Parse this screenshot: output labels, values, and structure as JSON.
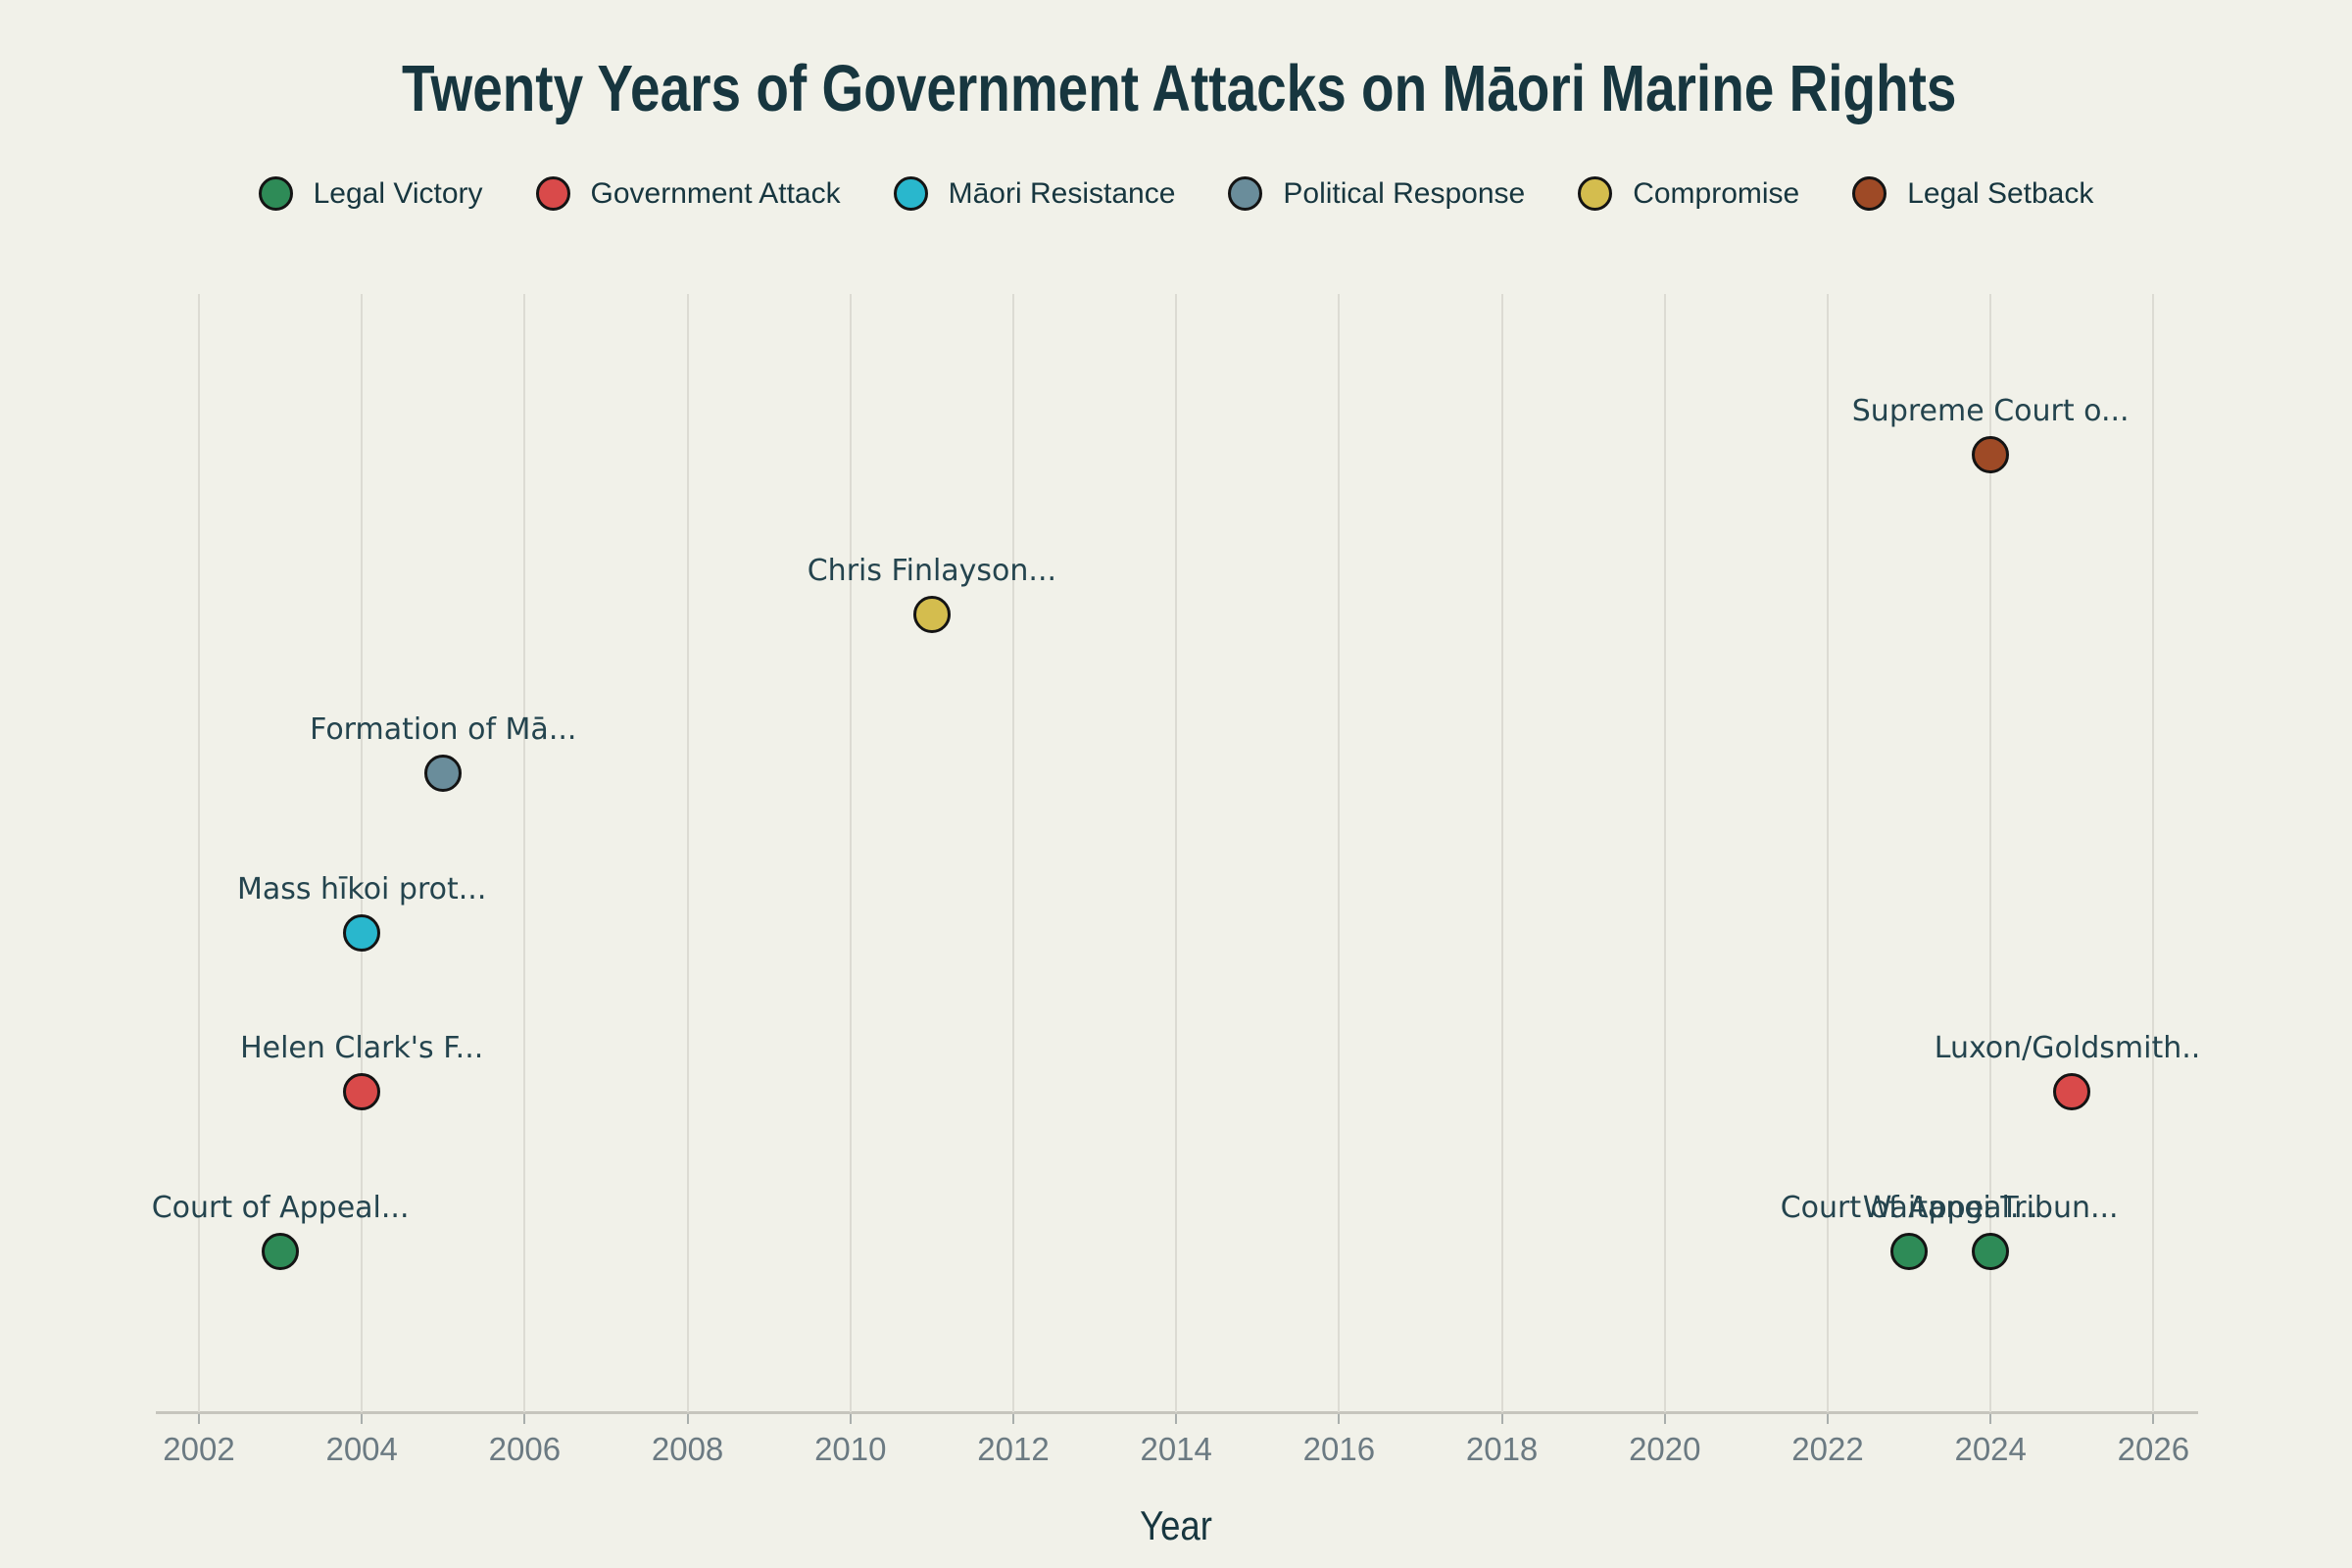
{
  "title": "Twenty Years of Government Attacks on Māori Marine Rights",
  "legend": {
    "items": [
      {
        "label": "Legal Victory",
        "color": "#2e8b57"
      },
      {
        "label": "Government Attack",
        "color": "#d94a4a"
      },
      {
        "label": "Māori Resistance",
        "color": "#29b7cd"
      },
      {
        "label": "Political Response",
        "color": "#6a8d9b"
      },
      {
        "label": "Compromise",
        "color": "#d4bd4e"
      },
      {
        "label": "Legal Setback",
        "color": "#9e4a26"
      }
    ]
  },
  "chart_data": {
    "type": "scatter",
    "title": "Twenty Years of Government Attacks on Māori Marine Rights",
    "xlabel": "Year",
    "x_ticks": [
      2002,
      2004,
      2006,
      2008,
      2010,
      2012,
      2014,
      2016,
      2018,
      2020,
      2022,
      2024,
      2026
    ],
    "xlim": [
      2001.5,
      2026.5
    ],
    "grid": "vertical-only",
    "legend_position": "top",
    "category_rows_top_to_bottom": [
      "Legal Setback",
      "Compromise",
      "Political Response",
      "Māori Resistance",
      "Government Attack",
      "Legal Victory"
    ],
    "series": [
      {
        "name": "Legal Victory",
        "color": "#2e8b57",
        "points": [
          {
            "year": 2003,
            "label": "Court of Appeal..."
          },
          {
            "year": 2023,
            "label": "Court of Appeal..."
          },
          {
            "year": 2024,
            "label": "Waitangi Tribun..."
          }
        ]
      },
      {
        "name": "Government Attack",
        "color": "#d94a4a",
        "points": [
          {
            "year": 2004,
            "label": "Helen Clark's F..."
          },
          {
            "year": 2025,
            "label": "Luxon/Goldsmith..."
          }
        ]
      },
      {
        "name": "Māori Resistance",
        "color": "#29b7cd",
        "points": [
          {
            "year": 2004,
            "label": "Mass hīkoi prot..."
          }
        ]
      },
      {
        "name": "Political Response",
        "color": "#6a8d9b",
        "points": [
          {
            "year": 2005,
            "label": "Formation of Mā..."
          }
        ]
      },
      {
        "name": "Compromise",
        "color": "#d4bd4e",
        "points": [
          {
            "year": 2011,
            "label": "Chris Finlayson..."
          }
        ]
      },
      {
        "name": "Legal Setback",
        "color": "#9e4a26",
        "points": [
          {
            "year": 2024,
            "label": "Supreme Court o..."
          }
        ]
      }
    ]
  },
  "colors": {
    "background": "#f1f1e9",
    "title_text": "#17363f",
    "event_label_text": "#24444e",
    "tick_label_text": "#6b7a82",
    "gridline": "#dcdbd3",
    "axis_line": "#c6c5bd",
    "dot_outline": "#141414"
  }
}
